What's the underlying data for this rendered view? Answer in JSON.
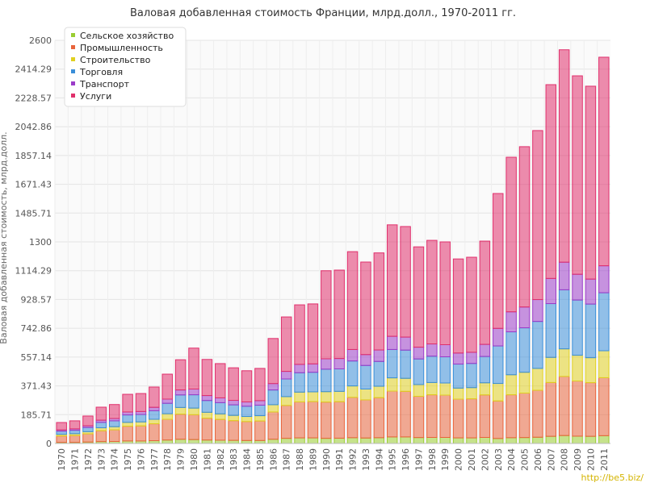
{
  "chart_data": {
    "type": "stacked-bar",
    "title": "Валовая добавленная стоимость Франции, млрд.долл., 1970-2011 гг.",
    "y_label": "Валовая добавленная стоимость, млрд.долл.",
    "watermark": "http://be5.biz/",
    "categories": [
      "1970",
      "1971",
      "1972",
      "1973",
      "1974",
      "1975",
      "1976",
      "1977",
      "1978",
      "1979",
      "1980",
      "1981",
      "1982",
      "1983",
      "1984",
      "1985",
      "1986",
      "1987",
      "1988",
      "1989",
      "1990",
      "1991",
      "1992",
      "1993",
      "1994",
      "1995",
      "1996",
      "1997",
      "1998",
      "1999",
      "2000",
      "2001",
      "2002",
      "2003",
      "2004",
      "2005",
      "2006",
      "2007",
      "2008",
      "2009",
      "2010",
      "2011"
    ],
    "ylim": [
      0,
      2600
    ],
    "yticks": [
      0,
      185.71,
      371.43,
      557.14,
      742.86,
      928.57,
      1114.29,
      1300,
      1485.71,
      1671.43,
      1857.14,
      2042.86,
      2228.57,
      2414.29,
      2600
    ],
    "grid": true,
    "legend": "top-left",
    "series": [
      {
        "name": "Сельское хозяйство",
        "color": "#9acd32",
        "values": [
          7,
          7,
          9,
          12,
          13,
          16,
          16,
          18,
          22,
          27,
          25,
          22,
          21,
          20,
          19,
          19,
          27,
          33,
          36,
          36,
          33,
          34,
          37,
          35,
          37,
          42,
          42,
          38,
          39,
          39,
          36,
          36,
          39,
          32,
          37,
          38,
          40,
          46,
          51,
          47,
          46,
          50
        ]
      },
      {
        "name": "Промышленность",
        "color": "#e8643c",
        "values": [
          41,
          44,
          53,
          70,
          75,
          95,
          97,
          109,
          134,
          162,
          160,
          141,
          134,
          127,
          122,
          126,
          176,
          212,
          232,
          234,
          234,
          235,
          260,
          246,
          258,
          296,
          294,
          266,
          275,
          273,
          250,
          252,
          274,
          242,
          277,
          287,
          303,
          347,
          381,
          356,
          346,
          374
        ]
      },
      {
        "name": "Строительство",
        "color": "#e0d020",
        "values": [
          11,
          12,
          14,
          19,
          20,
          25,
          26,
          29,
          36,
          43,
          43,
          38,
          36,
          34,
          33,
          34,
          47,
          57,
          63,
          63,
          67,
          67,
          74,
          70,
          74,
          85,
          84,
          76,
          79,
          78,
          71,
          72,
          78,
          113,
          129,
          134,
          141,
          162,
          178,
          166,
          161,
          174
        ]
      },
      {
        "name": "Торговля",
        "color": "#3a8ed8",
        "values": [
          20,
          22,
          27,
          35,
          38,
          48,
          48,
          55,
          67,
          81,
          86,
          76,
          72,
          68,
          66,
          68,
          95,
          114,
          125,
          126,
          145,
          145,
          161,
          152,
          160,
          183,
          182,
          165,
          170,
          169,
          155,
          156,
          170,
          242,
          277,
          287,
          303,
          347,
          381,
          356,
          346,
          374
        ]
      },
      {
        "name": "Транспорт",
        "color": "#9b3cc8",
        "values": [
          8,
          9,
          11,
          14,
          15,
          19,
          19,
          22,
          27,
          32,
          37,
          32,
          31,
          29,
          28,
          29,
          41,
          49,
          54,
          54,
          67,
          67,
          74,
          70,
          74,
          85,
          84,
          76,
          79,
          78,
          71,
          72,
          78,
          113,
          129,
          134,
          141,
          162,
          178,
          166,
          161,
          174
        ]
      },
      {
        "name": "Услуги",
        "color": "#e0306c",
        "values": [
          48,
          52,
          63,
          84,
          90,
          114,
          116,
          131,
          161,
          195,
          264,
          233,
          221,
          210,
          201,
          208,
          291,
          351,
          384,
          387,
          568,
          570,
          631,
          597,
          626,
          719,
          713,
          647,
          668,
          663,
          607,
          613,
          666,
          870,
          997,
          1034,
          1090,
          1250,
          1370,
          1280,
          1244,
          1345
        ]
      }
    ]
  }
}
